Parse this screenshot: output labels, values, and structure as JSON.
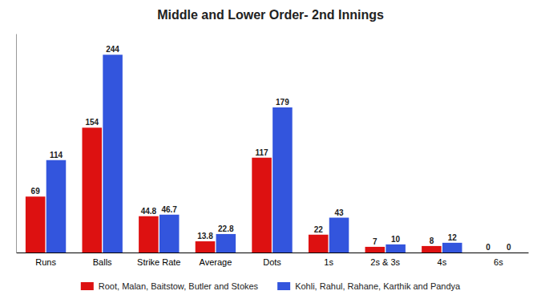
{
  "chart_data": {
    "type": "bar",
    "title": "Middle and Lower Order- 2nd Innings",
    "categories": [
      "Runs",
      "Balls",
      "Strike Rate",
      "Average",
      "Dots",
      "1s",
      "2s & 3s",
      "4s",
      "6s"
    ],
    "series": [
      {
        "name": "Root, Malan, Baitstow, Butler and Stokes",
        "color": "#dd1111",
        "values": [
          69,
          154,
          44.8,
          13.8,
          117,
          22,
          7,
          8,
          0
        ]
      },
      {
        "name": "Kohli, Rahul, Rahane, Karthik and Pandya",
        "color": "#3355dd",
        "values": [
          114,
          244,
          46.7,
          22.8,
          179,
          43,
          10,
          12,
          0
        ]
      }
    ],
    "ylim": [
      0,
      270
    ],
    "grid": false,
    "data_labels": true,
    "tick_labels": "x",
    "legend": "bottom"
  }
}
